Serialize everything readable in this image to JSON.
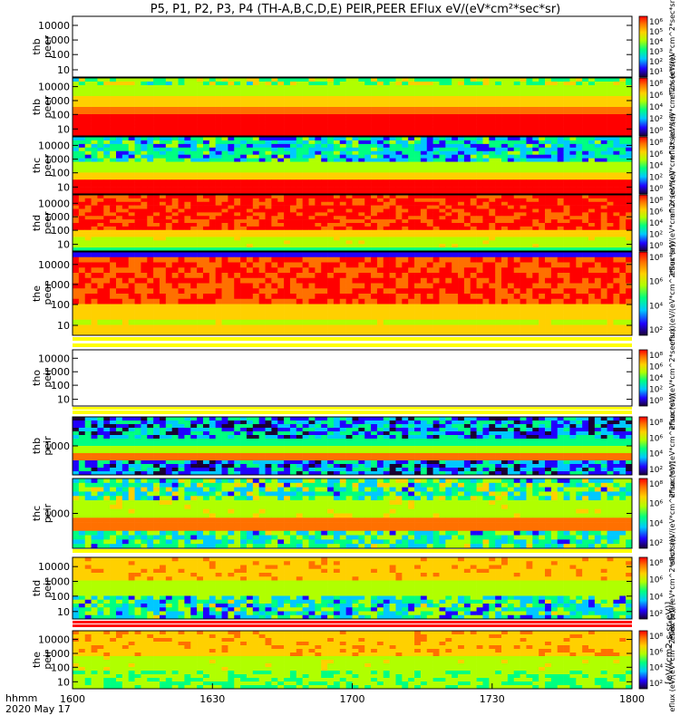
{
  "title": "P5, P1, P2, P3, P4 (TH-A,B,C,D,E) PEIR,PEER EFlux eV/(eV*cm²*sec*sr)",
  "x_axis": {
    "prefix_line1": "hhmm",
    "prefix_line2": "2020 May 17",
    "ticks": [
      "1600",
      "1630",
      "1700",
      "1730",
      "1800"
    ]
  },
  "colorbar_unit_label": "[eV/(cm2-s-sr-eV)]",
  "panel_colorbar_labels": [
    "eflux (eV/(eV*cm^2*sec*sr))",
    "eflux (eV/(eV*cm^2*sec*sr))",
    "eflux (eV/(eV*cm^2*sec*sr))",
    "eflux (eV/(eV*cm^2*sec*sr))",
    "eflux (eV/(eV*cm^2*sec*sr))",
    "eflux (eV/(eV*cm^2*sec*sr))",
    "eflux (eV/(eV*cm^2*sec*sr))",
    "eflux (eV/(eV*cm^2*sec*sr))",
    "eflux (eV/(eV*cm^2*sec*sr))",
    "eflux (eV/(eV*cm^2*sec*sr))"
  ],
  "colors": {
    "ramp": [
      "#1a0033",
      "#2000ff",
      "#00c8ff",
      "#00ff80",
      "#b0ff00",
      "#ffd000",
      "#ff7000",
      "#ff0000"
    ],
    "separator_yellow": "#ffff00",
    "separator_red": "#ff0000"
  },
  "chart_data": {
    "type": "heatmap",
    "x_range": [
      "1600",
      "1800"
    ],
    "panels": [
      {
        "probe": "thb",
        "species": "peer",
        "ytick_labels": [
          "10000",
          "1000",
          "100",
          "10"
        ],
        "cbar_ticks": [
          "10⁶",
          "10⁵",
          "10⁴",
          "10³",
          "10²",
          "10¹"
        ],
        "y_scale": "log",
        "has_data": false
      },
      {
        "probe": "thb",
        "species": "peer",
        "ytick_labels": [
          "10000",
          "1000",
          "100",
          "10"
        ],
        "cbar_ticks": [
          "10⁸",
          "10⁶",
          "10⁴",
          "10²",
          "10⁰"
        ],
        "y_scale": "log",
        "has_data": true
      },
      {
        "probe": "thc",
        "species": "peer",
        "ytick_labels": [
          "10000",
          "1000",
          "100",
          "10"
        ],
        "cbar_ticks": [
          "10⁸",
          "10⁶",
          "10⁴",
          "10²",
          "10⁰"
        ],
        "y_scale": "log",
        "has_data": true
      },
      {
        "probe": "thd",
        "species": "peer",
        "ytick_labels": [
          "10000",
          "1000",
          "100",
          "10"
        ],
        "cbar_ticks": [
          "10⁸",
          "10⁶",
          "10⁴",
          "10²",
          "10⁰"
        ],
        "y_scale": "log",
        "has_data": true
      },
      {
        "probe": "the",
        "species": "peer",
        "ytick_labels": [
          "10000",
          "1000",
          "100",
          "10"
        ],
        "cbar_ticks": [
          "10⁸",
          "10⁶",
          "10⁴",
          "10²"
        ],
        "y_scale": "log",
        "has_data": true
      },
      {
        "probe": "tho",
        "species": "peir",
        "ytick_labels": [
          "10000",
          "1000",
          "100",
          "10"
        ],
        "cbar_ticks": [
          "10⁸",
          "10⁶",
          "10⁴",
          "10²",
          "10⁰"
        ],
        "y_scale": "log",
        "has_data": false
      },
      {
        "probe": "thb",
        "species": "peir",
        "ytick_labels": [
          "1000"
        ],
        "cbar_ticks": [
          "10⁸",
          "10⁶",
          "10⁴",
          "10²"
        ],
        "y_scale": "log",
        "has_data": true
      },
      {
        "probe": "thc",
        "species": "peir",
        "ytick_labels": [
          "1000"
        ],
        "cbar_ticks": [
          "10⁸",
          "10⁶",
          "10⁴",
          "10²"
        ],
        "y_scale": "log",
        "has_data": true
      },
      {
        "probe": "thd",
        "species": "peir",
        "ytick_labels": [
          "10000",
          "1000",
          "100",
          "10"
        ],
        "cbar_ticks": [
          "10⁸",
          "10⁶",
          "10⁴",
          "10²"
        ],
        "y_scale": "log",
        "has_data": true
      },
      {
        "probe": "the",
        "species": "peir",
        "ytick_labels": [
          "10000",
          "1000",
          "100",
          "10"
        ],
        "cbar_ticks": [
          "10⁸",
          "10⁶",
          "10⁴",
          "10²"
        ],
        "y_scale": "log",
        "has_data": true
      }
    ]
  }
}
